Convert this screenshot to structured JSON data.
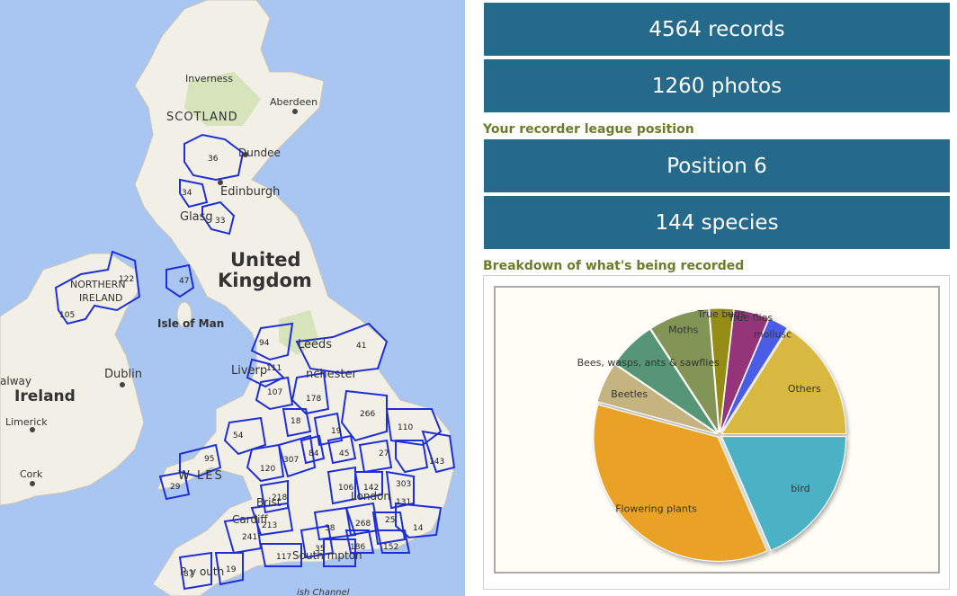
{
  "map": {
    "places": {
      "scotland": "SCOTLAND",
      "inverness": "Inverness",
      "aberdeen": "Aberdeen",
      "dundee": "Dundee",
      "edinburgh": "Edinburgh",
      "glasgow": "Glasg",
      "united": "United",
      "kingdom": "Kingdom",
      "northern_1": "NORTHERN",
      "northern_2": "IRELAND",
      "isle_of_man": "Isle of Man",
      "leeds": "Leeds",
      "liverpool": "Liverp",
      "manchester": "nchester",
      "dublin": "Dublin",
      "ireland": "Ireland",
      "limerick": "Limerick",
      "cork": "Cork",
      "galway": "alway",
      "wales": "W  LES",
      "bristol": "Brist",
      "cardiff": "Cardiff",
      "london": "London",
      "southampton": "South mpton",
      "plymouth": "P  y outh",
      "channel": "ish Channel"
    },
    "region_numbers": {
      "r36": "36",
      "r34": "34",
      "r33": "33",
      "r47": "47",
      "r122": "122",
      "r105": "105",
      "r94": "94",
      "r41": "41",
      "r111": "111",
      "r107": "107",
      "r178": "178",
      "r18": "18",
      "r266": "266",
      "r110": "110",
      "r19": "19",
      "r54": "54",
      "r95": "95",
      "r120": "120",
      "r307": "307",
      "r84": "84",
      "r45": "45",
      "r27": "27",
      "r143": "143",
      "r29": "29",
      "r218": "218",
      "r106": "106",
      "r142": "142",
      "r303": "303",
      "r131": "131",
      "r213": "213",
      "r38": "38",
      "r268": "268",
      "r25": "25",
      "r14": "14",
      "r241": "241",
      "r35": "35",
      "r186": "186",
      "r152": "152",
      "r117": "117",
      "r87": "87",
      "r19b": "19"
    }
  },
  "stats": {
    "records": "4564 records",
    "photos": "1260 photos",
    "league_heading": "Your recorder league position",
    "position": "Position 6",
    "species": "144 species",
    "breakdown_heading": "Breakdown of what's being recorded"
  },
  "chart_data": {
    "type": "pie",
    "categories": [
      "bird",
      "Flowering plants",
      "Beetles",
      "Bees, wasps, ants & sawflies",
      "Moths",
      "True bugs",
      "True flies",
      "mollusc",
      "Others"
    ],
    "values": [
      18.5,
      35.7,
      5.3,
      6.3,
      7.9,
      3.1,
      4.6,
      2.6,
      16.0
    ],
    "colors": [
      "#4bb2c5",
      "#eaa228",
      "#c5b47f",
      "#579575",
      "#839557",
      "#958c12",
      "#953579",
      "#4b5de4",
      "#d8b83f"
    ]
  }
}
